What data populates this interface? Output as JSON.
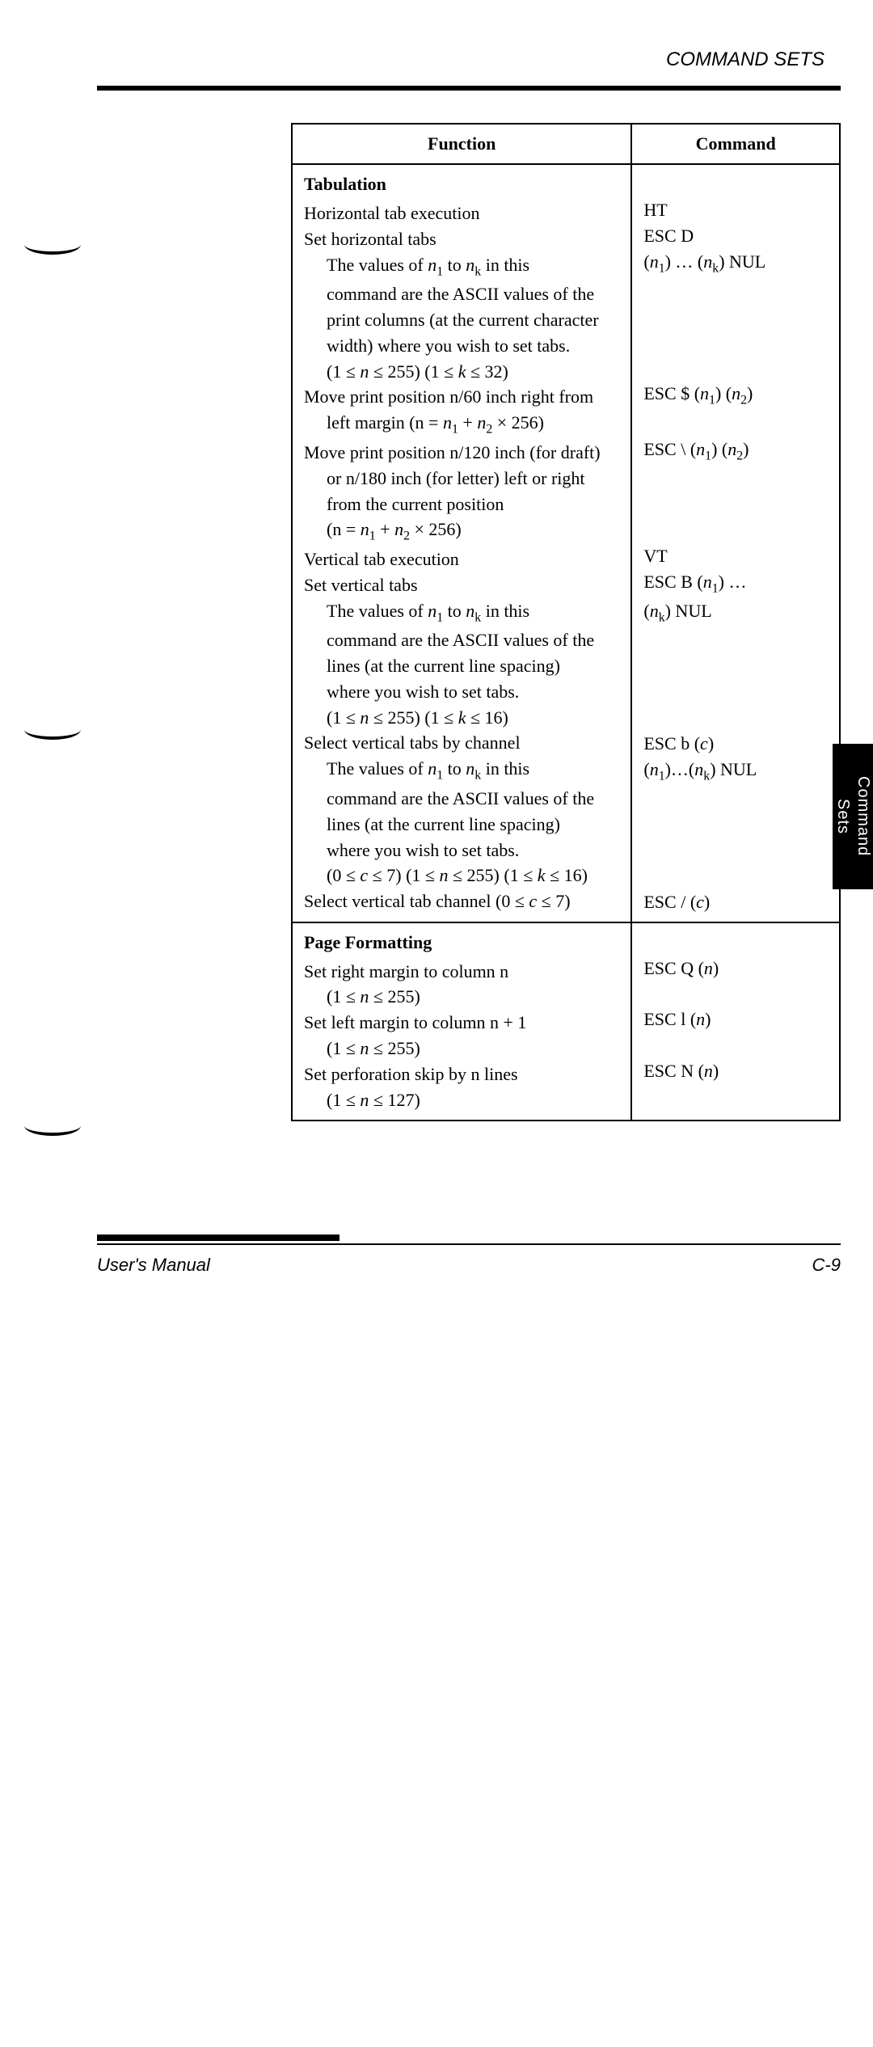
{
  "header": {
    "title": "COMMAND SETS"
  },
  "table": {
    "headers": {
      "function": "Function",
      "command": "Command"
    },
    "sec1": {
      "title": "Tabulation",
      "r1": {
        "func": "Horizontal tab execution",
        "cmd": "HT"
      },
      "r2": {
        "func": "Set horizontal tabs",
        "cmd": "ESC D",
        "cmd2a": "(",
        "cmd2b": ") … (",
        "cmd2c": ") NUL",
        "d1a": "The values of ",
        "d1b": " to ",
        "d1c": " in this",
        "d2": "command are the ASCII values of the",
        "d3": "print columns (at the current character",
        "d4": "width) where you wish to set tabs.",
        "d5a": "(1 ≤ ",
        "d5b": " ≤ 255) (1 ≤ ",
        "d5c": " ≤ 32)"
      },
      "r3": {
        "f1": "Move print position n/60 inch right from",
        "f2a": "left margin (n = ",
        "f2b": " + ",
        "f2c": " × 256)",
        "c1a": "ESC $ (",
        "c1b": ") (",
        "c1c": ")"
      },
      "r4": {
        "f1": "Move print position n/120 inch (for draft)",
        "f2": "or n/180 inch (for letter) left or right",
        "f3": "from the current position",
        "f4a": "(n = ",
        "f4b": " + ",
        "f4c": " × 256)",
        "c1a": "ESC \\ (",
        "c1b": ") (",
        "c1c": ")"
      },
      "r5": {
        "func": "Vertical tab execution",
        "cmd": "VT"
      },
      "r6": {
        "func": "Set vertical tabs",
        "c1a": "ESC B (",
        "c1b": ") …",
        "c2a": "(",
        "c2b": ") NUL",
        "d1a": "The values of ",
        "d1b": " to ",
        "d1c": " in this",
        "d2": "command are the ASCII values of the",
        "d3": "lines (at the current line spacing)",
        "d4": "where you wish to set tabs.",
        "d5a": "(1 ≤ ",
        "d5b": " ≤ 255) (1 ≤ ",
        "d5c": " ≤ 16)"
      },
      "r7": {
        "func": "Select vertical tabs by channel",
        "c1a": "ESC b (",
        "c1b": ")",
        "c2a": "(",
        "c2b": ")…(",
        "c2c": ") NUL",
        "d1a": "The values of ",
        "d1b": " to ",
        "d1c": " in this",
        "d2": "command are the ASCII values of the",
        "d3": "lines (at the current line spacing)",
        "d4": "where you wish to set tabs.",
        "d5a": "(0 ≤ ",
        "d5b": " ≤ 7) (1 ≤ ",
        "d5c": " ≤ 255) (1 ≤ ",
        "d5d": " ≤ 16)"
      },
      "r8": {
        "f1a": "Select vertical tab channel (0 ≤ ",
        "f1b": " ≤ 7)",
        "c1a": "ESC / (",
        "c1b": ")"
      }
    },
    "sec2": {
      "title": "Page Formatting",
      "r1": {
        "func": "Set right margin to column n",
        "r1a": "(1 ≤ ",
        "r1b": "  ≤ 255)",
        "c1a": "ESC Q (",
        "c1b": ")"
      },
      "r2": {
        "func": "Set left margin to column n + 1",
        "r2a": "(1 ≤ ",
        "r2b": "  ≤ 255)",
        "c1a": "ESC l (",
        "c1b": ")"
      },
      "r3": {
        "func": "Set perforation skip by n lines",
        "r3a": "(1 ≤ ",
        "r3b": " ≤ 127)",
        "c1a": "ESC N (",
        "c1b": ")"
      }
    }
  },
  "vars": {
    "n": "n",
    "n1": "n",
    "n2": "n",
    "nk": "n",
    "k": "k",
    "c": "c"
  },
  "subs": {
    "one": "1",
    "two": "2",
    "k": "k"
  },
  "footer": {
    "left": "User's Manual",
    "right": "C-9"
  },
  "sidetab": {
    "l1": "Command",
    "l2": "Sets"
  }
}
